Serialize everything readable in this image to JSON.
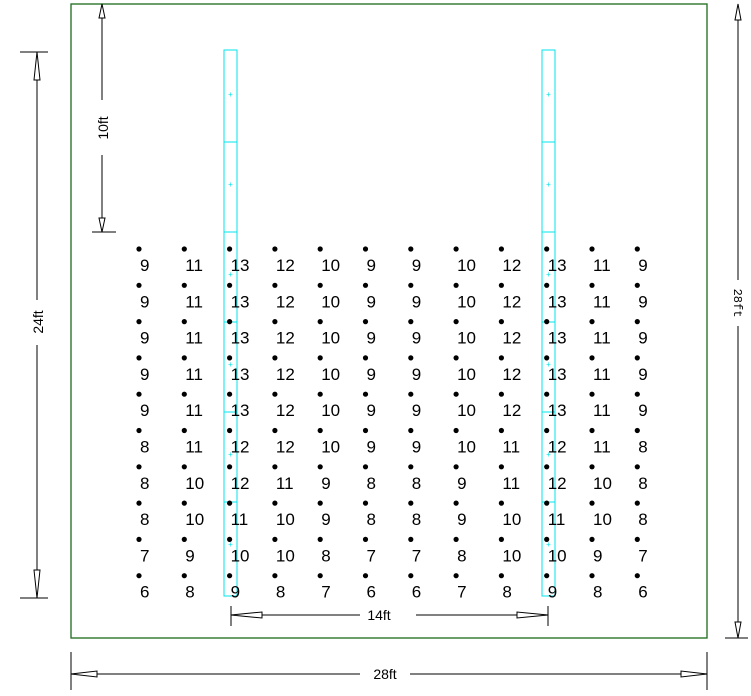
{
  "colors": {
    "boundary": "#1a6b1a",
    "fixture": "#00e5ee",
    "ink": "#000000"
  },
  "dimensions": {
    "bottom_width": "28ft",
    "right_height": "28ft",
    "left_height": "24ft",
    "fixture_spacing": "14ft",
    "fixture_offset": "10ft"
  },
  "grid_values": [
    [
      "9",
      "11",
      "13",
      "12",
      "10",
      "9",
      "9",
      "10",
      "12",
      "13",
      "11",
      "9"
    ],
    [
      "9",
      "11",
      "13",
      "12",
      "10",
      "9",
      "9",
      "10",
      "12",
      "13",
      "11",
      "9"
    ],
    [
      "9",
      "11",
      "13",
      "12",
      "10",
      "9",
      "9",
      "10",
      "12",
      "13",
      "11",
      "9"
    ],
    [
      "9",
      "11",
      "13",
      "12",
      "10",
      "9",
      "9",
      "10",
      "12",
      "13",
      "11",
      "9"
    ],
    [
      "9",
      "11",
      "13",
      "12",
      "10",
      "9",
      "9",
      "10",
      "12",
      "13",
      "11",
      "9"
    ],
    [
      "8",
      "11",
      "12",
      "12",
      "10",
      "9",
      "9",
      "10",
      "11",
      "12",
      "11",
      "8"
    ],
    [
      "8",
      "10",
      "12",
      "11",
      "9",
      "8",
      "8",
      "9",
      "11",
      "12",
      "10",
      "8"
    ],
    [
      "8",
      "10",
      "11",
      "10",
      "9",
      "8",
      "8",
      "9",
      "10",
      "11",
      "10",
      "8"
    ],
    [
      "7",
      "9",
      "10",
      "10",
      "8",
      "7",
      "7",
      "8",
      "10",
      "10",
      "9",
      "7"
    ],
    [
      "6",
      "8",
      "9",
      "8",
      "7",
      "6",
      "6",
      "7",
      "8",
      "9",
      "8",
      "6"
    ]
  ]
}
